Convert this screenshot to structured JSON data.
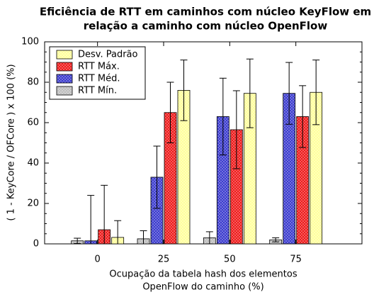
{
  "chart_data": {
    "type": "bar",
    "title": [
      "Eficiência de RTT em caminhos com núcleo KeyFlow em",
      "relação a caminho com núcleo OpenFlow"
    ],
    "xlabel": [
      "Ocupação da tabela hash dos elementos",
      "OpenFlow do caminho (%)"
    ],
    "ylabel": "( 1 - KeyCore / OFCore ) x 100  (%)",
    "x": [
      0,
      25,
      50,
      75
    ],
    "xlim": [
      -20,
      100
    ],
    "xticks": [
      0,
      25,
      50,
      75
    ],
    "ylim": [
      0,
      100
    ],
    "yticks": [
      0,
      20,
      40,
      60,
      80,
      100
    ],
    "legend": "upper left",
    "series": [
      {
        "name": "Desv. Padrão",
        "color": "#ffff99",
        "values": [
          3.2,
          76,
          74.5,
          75
        ],
        "errors": [
          8.3,
          15,
          17,
          16
        ]
      },
      {
        "name": "RTT Máx.",
        "color": "#ee1111",
        "values": [
          7,
          65,
          56.5,
          63
        ],
        "errors": [
          22,
          15,
          19.3,
          15.3
        ]
      },
      {
        "name": "RTT Méd.",
        "color": "#3333cc",
        "values": [
          1.5,
          33,
          63,
          74.5
        ],
        "errors": [
          22.5,
          15.4,
          19,
          15.3
        ]
      },
      {
        "name": "RTT Mín.",
        "color": "#bbbbbb",
        "values": [
          1.5,
          2.5,
          3,
          2
        ],
        "errors": [
          1.3,
          4,
          3,
          1
        ]
      }
    ]
  }
}
